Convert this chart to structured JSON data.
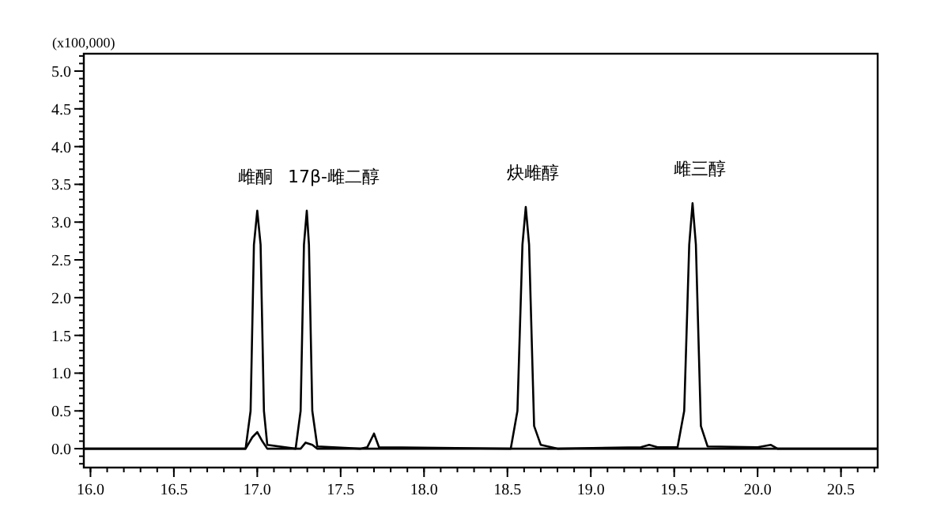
{
  "chart_data": {
    "type": "line",
    "ylabel": "(x100,000)",
    "xlim": [
      15.96,
      20.72
    ],
    "xticks": [
      {
        "value": 16.0,
        "label": "16.0"
      },
      16.5,
      {
        "value": 17.0,
        "label": "17.0"
      },
      17.5,
      {
        "value": 18.0,
        "label": "18.0"
      },
      18.5,
      {
        "value": 19.0,
        "label": "19.0"
      },
      19.5,
      {
        "value": 20.0,
        "label": "20.0"
      },
      20.5
    ],
    "ylim": [
      -0.25,
      5.23
    ],
    "yticks": [
      {
        "value": 0,
        "label": "0.0"
      },
      0.5,
      {
        "value": 1,
        "label": "1.0"
      },
      1.5,
      {
        "value": 2,
        "label": "2.0"
      },
      2.5,
      {
        "value": 3,
        "label": "3.0"
      },
      3.5,
      {
        "value": 4,
        "label": "4.0"
      },
      4.5,
      {
        "value": 5,
        "label": "5.0"
      }
    ],
    "grid": false,
    "marker": "none",
    "line_style": "solid",
    "series": [
      {
        "color": "#000000",
        "x": [
          15.96,
          16.93,
          16.96,
          16.98,
          17.0,
          17.02,
          17.04,
          17.06,
          17.23,
          17.26,
          17.28,
          17.297,
          17.31,
          17.33,
          17.36,
          17.62,
          17.66,
          17.7,
          17.73,
          18.52,
          18.56,
          18.59,
          18.61,
          18.63,
          18.66,
          18.7,
          18.8,
          19.3,
          19.35,
          19.4,
          19.52,
          19.56,
          19.59,
          19.61,
          19.63,
          19.66,
          19.7,
          20.0,
          20.08,
          20.12,
          20.72
        ],
        "values": [
          0,
          0,
          0.5,
          2.7,
          3.15,
          2.7,
          0.5,
          0.05,
          0,
          0.5,
          2.7,
          3.15,
          2.7,
          0.5,
          0.03,
          0,
          0.02,
          0.2,
          0.02,
          0,
          0.5,
          2.7,
          3.2,
          2.7,
          0.3,
          0.05,
          0,
          0.02,
          0.05,
          0.02,
          0.02,
          0.5,
          2.7,
          3.25,
          2.7,
          0.3,
          0.03,
          0.02,
          0.05,
          0,
          0
        ]
      },
      {
        "color": "#000000",
        "x": [
          15.96,
          16.93,
          16.97,
          17.0,
          17.03,
          17.06,
          17.26,
          17.29,
          17.33,
          17.36,
          20.72
        ],
        "values": [
          0,
          0,
          0.15,
          0.22,
          0.1,
          0,
          0,
          0.08,
          0.05,
          0,
          0
        ]
      }
    ],
    "annotations": [
      {
        "text": "雌酮",
        "x": 17.0,
        "y": 3.15
      },
      {
        "text": "17β-雌二醇",
        "x": 17.297,
        "y": 3.15
      },
      {
        "text": "炔雌醇",
        "x": 18.61,
        "y": 3.2
      },
      {
        "text": "雌三醇",
        "x": 19.61,
        "y": 3.25
      }
    ]
  }
}
